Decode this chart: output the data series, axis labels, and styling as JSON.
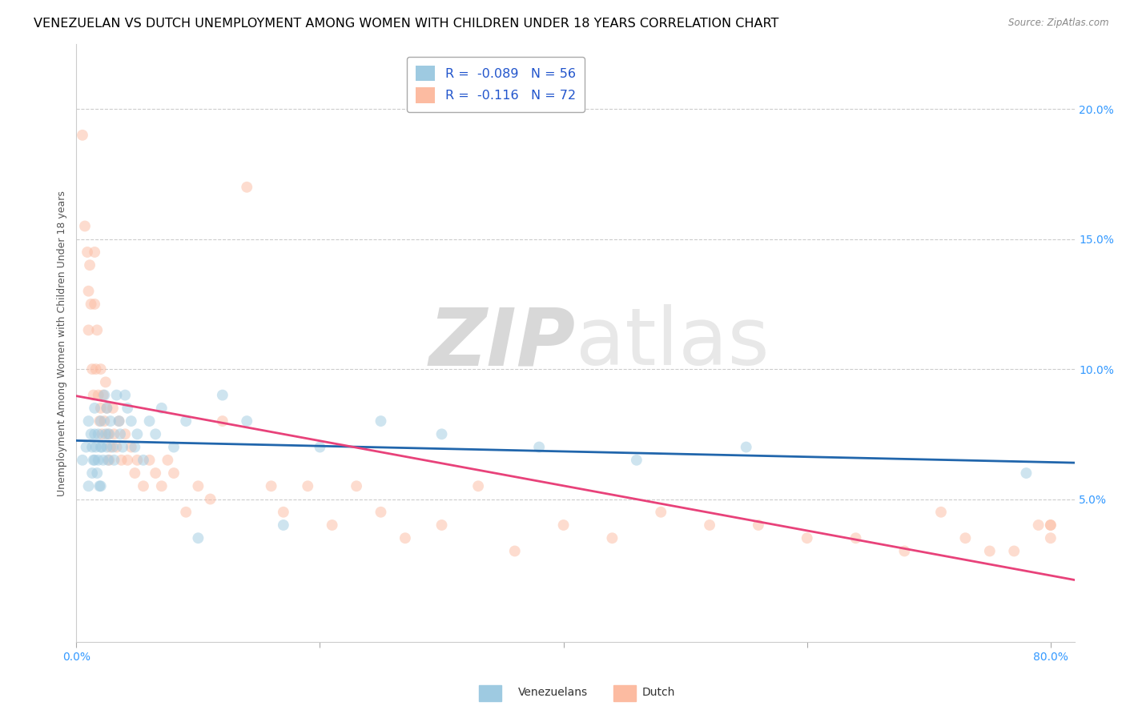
{
  "title": "VENEZUELAN VS DUTCH UNEMPLOYMENT AMONG WOMEN WITH CHILDREN UNDER 18 YEARS CORRELATION CHART",
  "source": "Source: ZipAtlas.com",
  "ylabel": "Unemployment Among Women with Children Under 18 years",
  "xlim": [
    0.0,
    0.82
  ],
  "ylim": [
    -0.005,
    0.225
  ],
  "xticks": [
    0.0,
    0.2,
    0.4,
    0.6,
    0.8
  ],
  "xticklabels": [
    "0.0%",
    "",
    "",
    "",
    "80.0%"
  ],
  "yticks": [
    0.05,
    0.1,
    0.15,
    0.2
  ],
  "yticklabels": [
    "5.0%",
    "10.0%",
    "15.0%",
    "20.0%"
  ],
  "legend_labels": [
    "Venezuelans",
    "Dutch"
  ],
  "venezuelan_R": "-0.089",
  "venezuelan_N": "56",
  "dutch_R": "-0.116",
  "dutch_N": "72",
  "blue_color": "#9ecae1",
  "pink_color": "#fcbba1",
  "blue_line_color": "#2166ac",
  "pink_line_color": "#e8427a",
  "watermark_zip": "ZIP",
  "watermark_atlas": "atlas",
  "watermark_color": "#d8d8d8",
  "venezuelan_x": [
    0.005,
    0.008,
    0.01,
    0.01,
    0.012,
    0.013,
    0.013,
    0.014,
    0.015,
    0.015,
    0.015,
    0.016,
    0.017,
    0.018,
    0.018,
    0.019,
    0.02,
    0.02,
    0.02,
    0.021,
    0.022,
    0.023,
    0.024,
    0.025,
    0.025,
    0.026,
    0.027,
    0.028,
    0.03,
    0.031,
    0.033,
    0.035,
    0.036,
    0.038,
    0.04,
    0.042,
    0.045,
    0.048,
    0.05,
    0.055,
    0.06,
    0.065,
    0.07,
    0.08,
    0.09,
    0.1,
    0.12,
    0.14,
    0.17,
    0.2,
    0.25,
    0.3,
    0.38,
    0.46,
    0.55,
    0.78
  ],
  "venezuelan_y": [
    0.065,
    0.07,
    0.08,
    0.055,
    0.075,
    0.07,
    0.06,
    0.065,
    0.085,
    0.075,
    0.065,
    0.07,
    0.06,
    0.075,
    0.065,
    0.055,
    0.08,
    0.07,
    0.055,
    0.07,
    0.065,
    0.09,
    0.075,
    0.085,
    0.07,
    0.065,
    0.075,
    0.08,
    0.07,
    0.065,
    0.09,
    0.08,
    0.075,
    0.07,
    0.09,
    0.085,
    0.08,
    0.07,
    0.075,
    0.065,
    0.08,
    0.075,
    0.085,
    0.07,
    0.08,
    0.035,
    0.09,
    0.08,
    0.04,
    0.07,
    0.08,
    0.075,
    0.07,
    0.065,
    0.07,
    0.06
  ],
  "dutch_x": [
    0.005,
    0.007,
    0.009,
    0.01,
    0.01,
    0.011,
    0.012,
    0.013,
    0.014,
    0.015,
    0.015,
    0.016,
    0.017,
    0.018,
    0.019,
    0.02,
    0.02,
    0.021,
    0.022,
    0.023,
    0.024,
    0.025,
    0.026,
    0.027,
    0.028,
    0.03,
    0.031,
    0.033,
    0.035,
    0.037,
    0.04,
    0.042,
    0.045,
    0.048,
    0.05,
    0.055,
    0.06,
    0.065,
    0.07,
    0.075,
    0.08,
    0.09,
    0.1,
    0.11,
    0.12,
    0.14,
    0.16,
    0.17,
    0.19,
    0.21,
    0.23,
    0.25,
    0.27,
    0.3,
    0.33,
    0.36,
    0.4,
    0.44,
    0.48,
    0.52,
    0.56,
    0.6,
    0.64,
    0.68,
    0.71,
    0.73,
    0.75,
    0.77,
    0.79,
    0.8,
    0.8,
    0.8
  ],
  "dutch_y": [
    0.19,
    0.155,
    0.145,
    0.13,
    0.115,
    0.14,
    0.125,
    0.1,
    0.09,
    0.145,
    0.125,
    0.1,
    0.115,
    0.09,
    0.08,
    0.1,
    0.085,
    0.075,
    0.09,
    0.08,
    0.095,
    0.085,
    0.075,
    0.065,
    0.07,
    0.085,
    0.075,
    0.07,
    0.08,
    0.065,
    0.075,
    0.065,
    0.07,
    0.06,
    0.065,
    0.055,
    0.065,
    0.06,
    0.055,
    0.065,
    0.06,
    0.045,
    0.055,
    0.05,
    0.08,
    0.17,
    0.055,
    0.045,
    0.055,
    0.04,
    0.055,
    0.045,
    0.035,
    0.04,
    0.055,
    0.03,
    0.04,
    0.035,
    0.045,
    0.04,
    0.04,
    0.035,
    0.035,
    0.03,
    0.045,
    0.035,
    0.03,
    0.03,
    0.04,
    0.04,
    0.035,
    0.04
  ],
  "marker_size": 100,
  "alpha": 0.5,
  "grid_color": "#cccccc",
  "title_fontsize": 11.5,
  "tick_fontsize": 10,
  "ylabel_fontsize": 9
}
